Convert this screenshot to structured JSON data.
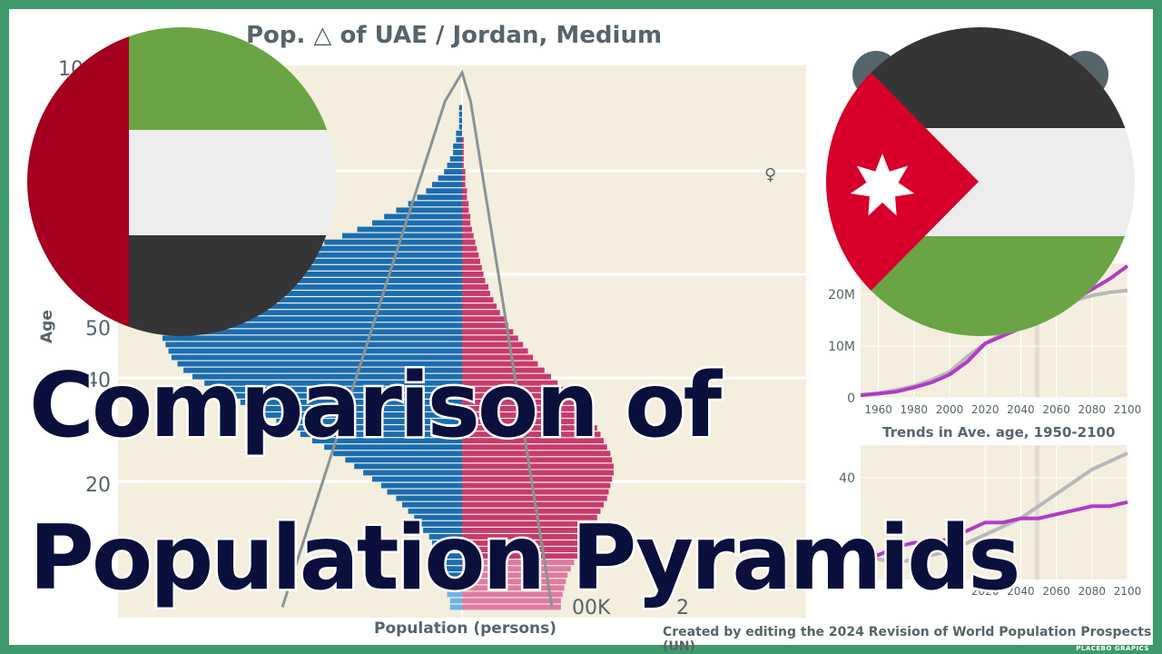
{
  "title": "Pop. △ of UAE / Jordan, Medium",
  "headline": {
    "line1": "Comparison of",
    "line2": "Population  Pyramids"
  },
  "credit": "Created by editing the 2024 Revision of World Population Prospects (UN)",
  "brand": "PLACEBO GRAPICS",
  "female_symbol": "♀",
  "colors": {
    "frame": "#3e9a6c",
    "male": "#1a6db0",
    "female": "#c83a6e",
    "jordan_line": "#b23ac8",
    "uae_line": "#b8b8b8",
    "outline": "#8a9394",
    "panel": "#f3eede",
    "headline": "#0a0f3c"
  },
  "flags": {
    "left": "UAE flag",
    "right": "Jordan flag"
  },
  "chart_data": [
    {
      "type": "bar",
      "title": "Pop. △ of UAE / Jordan, Medium",
      "xlabel": "Population (persons)",
      "ylabel": "Age",
      "x_tick_labels": [
        "00K",
        "2"
      ],
      "y_tick_labels": [
        "10",
        "50",
        "40",
        "20"
      ],
      "series": [
        {
          "name": "male",
          "values": [
            0.04,
            0.04,
            0.05,
            0.05,
            0.06,
            0.06,
            0.07,
            0.08,
            0.08,
            0.09,
            0.1,
            0.11,
            0.13,
            0.14,
            0.16,
            0.18,
            0.2,
            0.22,
            0.25,
            0.27,
            0.3,
            0.33,
            0.36,
            0.39,
            0.43,
            0.46,
            0.5,
            0.54,
            0.58,
            0.62,
            0.66,
            0.7,
            0.74,
            0.78,
            0.82,
            0.86,
            0.9,
            0.93,
            0.95,
            0.97,
            0.98,
            0.99,
            1.0,
            1.0,
            0.99,
            0.98,
            0.96,
            0.94,
            0.91,
            0.88,
            0.84,
            0.8,
            0.75,
            0.7,
            0.64,
            0.58,
            0.52,
            0.46,
            0.4,
            0.35,
            0.3,
            0.26,
            0.22,
            0.18,
            0.15,
            0.12,
            0.1,
            0.08,
            0.06,
            0.05,
            0.04,
            0.03,
            0.03,
            0.02,
            0.02,
            0.01,
            0.01,
            0.01,
            0.01,
            0.0
          ]
        },
        {
          "name": "female",
          "values": [
            0.6,
            0.6,
            0.61,
            0.62,
            0.63,
            0.64,
            0.66,
            0.68,
            0.7,
            0.72,
            0.74,
            0.76,
            0.78,
            0.8,
            0.82,
            0.84,
            0.86,
            0.88,
            0.89,
            0.9,
            0.91,
            0.92,
            0.92,
            0.91,
            0.9,
            0.88,
            0.86,
            0.84,
            0.82,
            0.8,
            0.77,
            0.74,
            0.7,
            0.66,
            0.62,
            0.58,
            0.54,
            0.5,
            0.46,
            0.43,
            0.4,
            0.37,
            0.34,
            0.31,
            0.28,
            0.26,
            0.23,
            0.21,
            0.19,
            0.17,
            0.16,
            0.14,
            0.13,
            0.12,
            0.11,
            0.1,
            0.09,
            0.08,
            0.07,
            0.06,
            0.05,
            0.05,
            0.04,
            0.04,
            0.03,
            0.03,
            0.02,
            0.02,
            0.02,
            0.01,
            0.01,
            0.01,
            0.01,
            0.01,
            0.0,
            0.0,
            0.0,
            0.0,
            0.0,
            0.0
          ]
        }
      ]
    },
    {
      "type": "line",
      "title": "",
      "x_ticks": [
        1960,
        1980,
        2000,
        2020,
        2040,
        2060,
        2080,
        2100
      ],
      "y_ticks": [
        "0",
        "10M",
        "20M"
      ],
      "ylim": [
        0,
        26000000
      ],
      "series": [
        {
          "name": "",
          "color": "#b23ac8",
          "x": [
            1950,
            1960,
            1970,
            1980,
            1990,
            2000,
            2010,
            2020,
            2030,
            2040,
            2050,
            2060,
            2070,
            2080,
            2090,
            2100
          ],
          "y": [
            500000,
            800000,
            1200000,
            2000000,
            3000000,
            4500000,
            7000000,
            10500000,
            12000000,
            13500000,
            15500000,
            17000000,
            19000000,
            21000000,
            23000000,
            25500000
          ]
        },
        {
          "name": "",
          "color": "#b8b8b8",
          "x": [
            1950,
            1960,
            1970,
            1980,
            1990,
            2000,
            2010,
            2020,
            2030,
            2040,
            2050,
            2060,
            2070,
            2080,
            2090,
            2100
          ],
          "y": [
            600000,
            900000,
            1500000,
            2300000,
            3500000,
            5000000,
            8000000,
            10500000,
            12500000,
            14500000,
            16000000,
            17500000,
            18800000,
            19800000,
            20400000,
            20800000
          ]
        }
      ]
    },
    {
      "type": "line",
      "title": "Trends in Ave. age, 1950-2100",
      "x_ticks": [
        2020,
        2040,
        2060,
        2080,
        2100
      ],
      "y_ticks": [
        "40"
      ],
      "ylim": [
        15,
        48
      ],
      "series": [
        {
          "name": "",
          "color": "#b23ac8",
          "x": [
            1950,
            1960,
            1970,
            1980,
            1990,
            2000,
            2010,
            2020,
            2030,
            2040,
            2050,
            2060,
            2070,
            2080,
            2090,
            2100
          ],
          "y": [
            22,
            21,
            23,
            24,
            24,
            25,
            27,
            29,
            29,
            30,
            30,
            31,
            32,
            33,
            33,
            34
          ]
        },
        {
          "name": "",
          "color": "#b8b8b8",
          "x": [
            1950,
            1960,
            1970,
            1980,
            1990,
            2000,
            2010,
            2020,
            2030,
            2040,
            2050,
            2060,
            2070,
            2080,
            2090,
            2100
          ],
          "y": [
            22,
            20,
            19,
            20,
            21,
            22,
            24,
            26,
            28,
            30,
            33,
            36,
            39,
            42,
            44,
            46
          ]
        }
      ]
    }
  ]
}
